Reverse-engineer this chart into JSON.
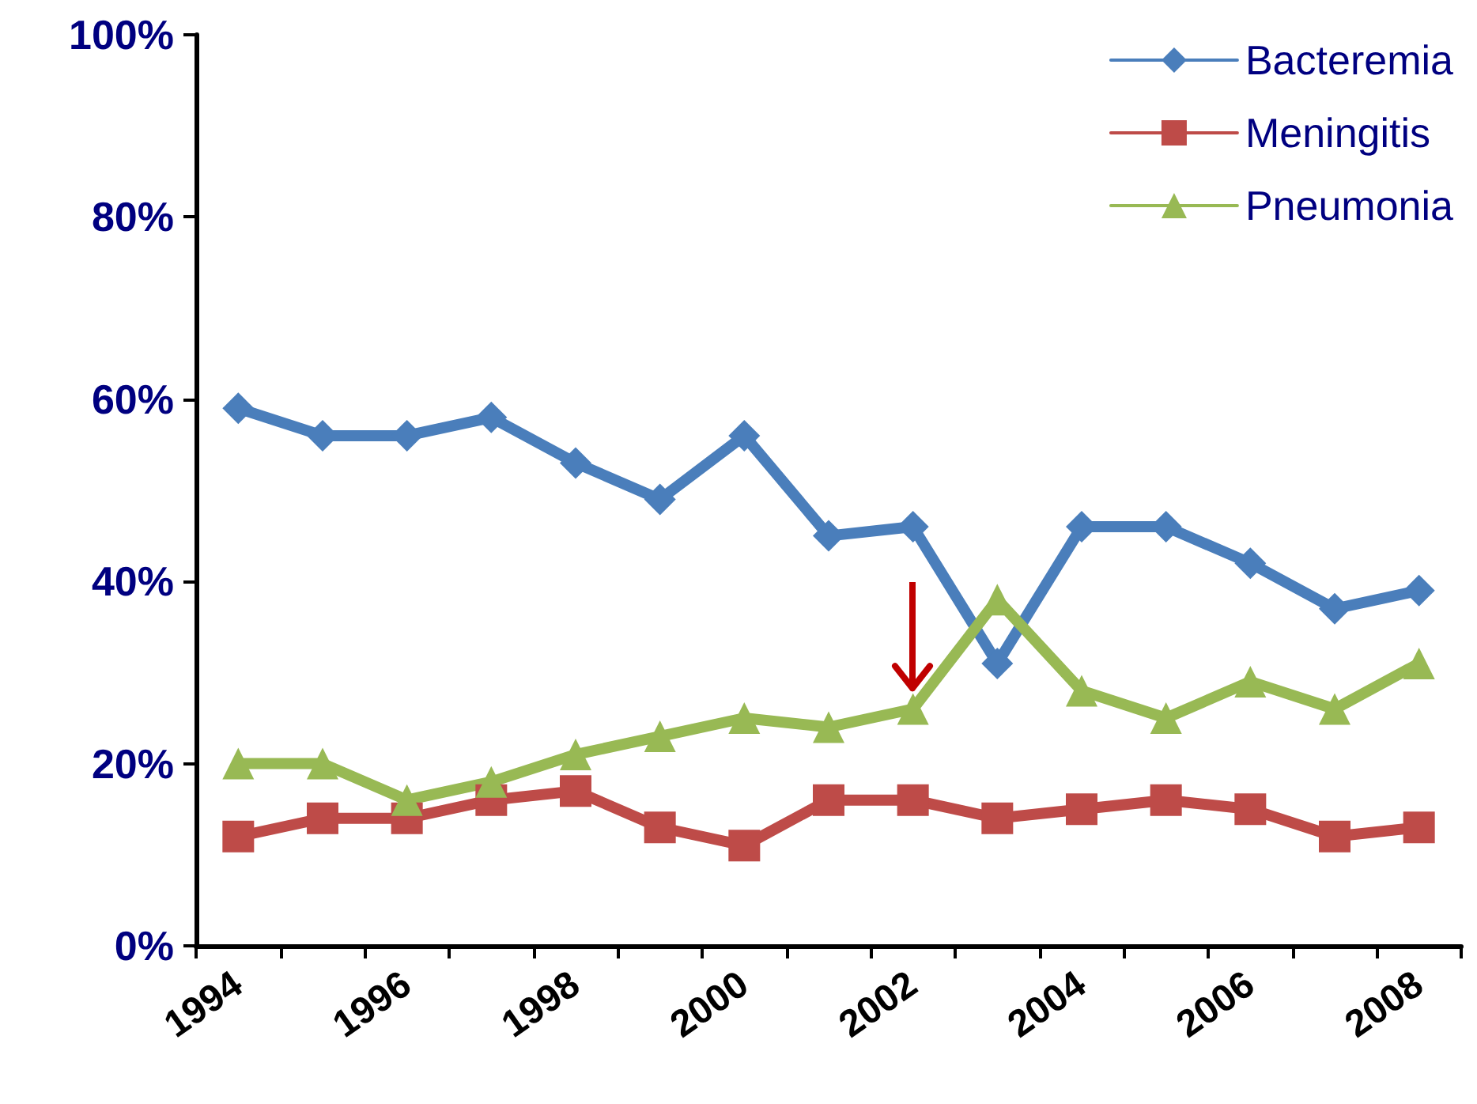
{
  "chart_data": {
    "type": "line",
    "categories": [
      "1994",
      null,
      "1996",
      null,
      "1998",
      null,
      "2000",
      null,
      "2002",
      null,
      "2004",
      null,
      "2006",
      null,
      "2008"
    ],
    "series": [
      {
        "name": "Bacteremia",
        "color": "#4a7ebb",
        "marker": "diamond",
        "values": [
          59,
          56,
          56,
          58,
          53,
          49,
          56,
          45,
          46,
          31,
          46,
          46,
          42,
          37,
          39
        ]
      },
      {
        "name": "Meningitis",
        "color": "#be4b48",
        "marker": "square",
        "values": [
          12,
          14,
          14,
          16,
          17,
          13,
          11,
          16,
          16,
          14,
          15,
          16,
          15,
          12,
          13
        ]
      },
      {
        "name": "Pneumonia",
        "color": "#98b954",
        "marker": "triangle",
        "values": [
          20,
          20,
          16,
          18,
          21,
          23,
          25,
          24,
          26,
          38,
          28,
          25,
          29,
          26,
          31
        ]
      }
    ],
    "ylim": [
      0,
      100
    ],
    "yticks": [
      {
        "value": 0,
        "label": "0%"
      },
      {
        "value": 20,
        "label": "20%"
      },
      {
        "value": 40,
        "label": "40%"
      },
      {
        "value": 60,
        "label": "60%"
      },
      {
        "value": 80,
        "label": "80%"
      },
      {
        "value": 100,
        "label": "100%"
      }
    ],
    "grid": false,
    "legend": "top right",
    "line_style": "solid"
  }
}
